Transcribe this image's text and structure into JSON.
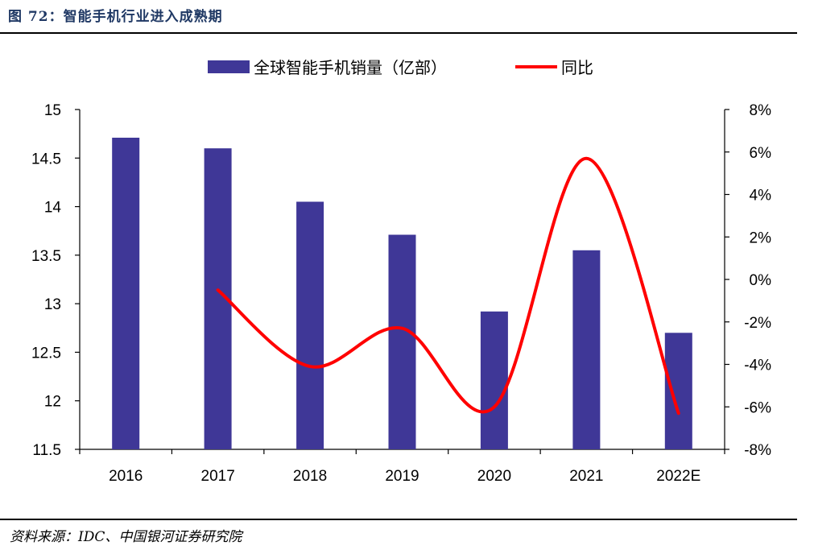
{
  "figure": {
    "title": "图 72：智能手机行业进入成熟期",
    "source": "资料来源：IDC、中国银河证券研究院"
  },
  "chart_data": {
    "type": "bar",
    "categories": [
      "2016",
      "2017",
      "2018",
      "2019",
      "2020",
      "2021",
      "2022E"
    ],
    "series": [
      {
        "name": "全球智能手机销量（亿部）",
        "type": "bar",
        "axis": "left",
        "values": [
          14.71,
          14.6,
          14.05,
          13.71,
          12.92,
          13.55,
          12.7
        ],
        "color": "#3f3797"
      },
      {
        "name": "同比",
        "type": "line",
        "axis": "right",
        "values": [
          null,
          -0.5,
          -4.1,
          -2.3,
          -6.0,
          5.7,
          -6.3
        ],
        "color": "#ff0000"
      }
    ],
    "y_left": {
      "range": [
        11.5,
        15
      ],
      "ticks": [
        "11.5",
        "12",
        "12.5",
        "13",
        "13.5",
        "14",
        "14.5",
        "15"
      ]
    },
    "y_right": {
      "range": [
        -8,
        8
      ],
      "ticks": [
        "-8%",
        "-6%",
        "-4%",
        "-2%",
        "0%",
        "2%",
        "4%",
        "6%",
        "8%"
      ]
    },
    "legend": "top-center",
    "grid": false
  }
}
